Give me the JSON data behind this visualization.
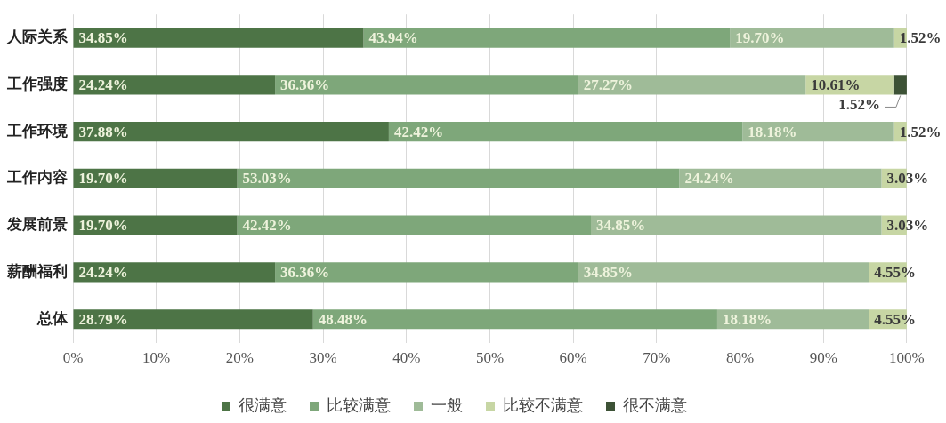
{
  "chart_data": {
    "type": "bar",
    "orientation": "horizontal",
    "stacked": true,
    "categories": [
      "人际关系",
      "工作强度",
      "工作环境",
      "工作内容",
      "发展前景",
      "薪酬福利",
      "总体"
    ],
    "series": [
      {
        "name": "很满意",
        "color": "#4d7446",
        "values": [
          34.85,
          24.24,
          37.88,
          19.7,
          19.7,
          24.24,
          28.79
        ],
        "value_labels": [
          "34.85%",
          "24.24%",
          "37.88%",
          "19.70%",
          "19.70%",
          "24.24%",
          "28.79%"
        ]
      },
      {
        "name": "比较满意",
        "color": "#7ea77a",
        "values": [
          43.94,
          36.36,
          42.42,
          53.03,
          42.42,
          36.36,
          48.48
        ],
        "value_labels": [
          "43.94%",
          "36.36%",
          "42.42%",
          "53.03%",
          "42.42%",
          "36.36%",
          "48.48%"
        ]
      },
      {
        "name": "一般",
        "color": "#9fbb98",
        "values": [
          19.7,
          27.27,
          18.18,
          24.24,
          34.85,
          34.85,
          18.18
        ],
        "value_labels": [
          "19.70%",
          "27.27%",
          "18.18%",
          "24.24%",
          "34.85%",
          "34.85%",
          "18.18%"
        ]
      },
      {
        "name": "比较不满意",
        "color": "#c7d6a4",
        "values": [
          1.52,
          10.61,
          1.52,
          3.03,
          3.03,
          4.55,
          4.55
        ],
        "value_labels": [
          "1.52%",
          "10.61%",
          "1.52%",
          "3.03%",
          "3.03%",
          "4.55%",
          "4.55%"
        ]
      },
      {
        "name": "很不满意",
        "color": "#3d5236",
        "values": [
          0,
          1.52,
          0,
          0,
          0,
          0,
          0
        ],
        "value_labels": [
          null,
          "1.52%",
          null,
          null,
          null,
          null,
          null
        ]
      }
    ],
    "xlim": [
      0,
      100.01
    ],
    "xticks": [
      {
        "value": 0,
        "label": "0%"
      },
      {
        "value": 10,
        "label": "10%"
      },
      {
        "value": 20,
        "label": "20%"
      },
      {
        "value": 30,
        "label": "30%"
      },
      {
        "value": 40,
        "label": "40%"
      },
      {
        "value": 50,
        "label": "50%"
      },
      {
        "value": 60,
        "label": "60%"
      },
      {
        "value": 70,
        "label": "70%"
      },
      {
        "value": 80,
        "label": "80%"
      },
      {
        "value": 90,
        "label": "90%"
      },
      {
        "value": 100,
        "label": "100%"
      }
    ],
    "grid": "x",
    "legend": "bottom"
  }
}
